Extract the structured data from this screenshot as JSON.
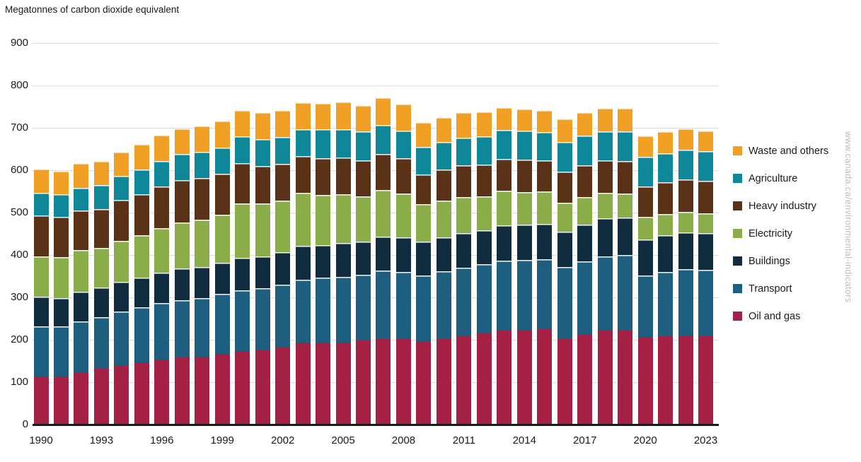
{
  "chart_data": {
    "type": "bar",
    "stacked": true,
    "title": "Megatonnes of carbon dioxide equivalent",
    "watermark": "www.canada.ca/environmental-indicators",
    "xlabel": "",
    "ylabel": "Megatonnes of carbon dioxide equivalent",
    "ylim": [
      0,
      900
    ],
    "ytick_step": 100,
    "grid": true,
    "legend_position": "right",
    "years": [
      1990,
      1991,
      1992,
      1993,
      1994,
      1995,
      1996,
      1997,
      1998,
      1999,
      2000,
      2001,
      2002,
      2003,
      2004,
      2005,
      2006,
      2007,
      2008,
      2009,
      2010,
      2011,
      2012,
      2013,
      2014,
      2015,
      2016,
      2017,
      2018,
      2019,
      2020,
      2021,
      2022,
      2023
    ],
    "x_tick_years": [
      1990,
      1993,
      1996,
      1999,
      2002,
      2005,
      2008,
      2011,
      2014,
      2017,
      2020,
      2023
    ],
    "series": [
      {
        "name": "Oil and gas",
        "color": "#A42045",
        "values": [
          113,
          114,
          123,
          131,
          139,
          146,
          153,
          158,
          160,
          166,
          173,
          177,
          183,
          191,
          192,
          194,
          199,
          204,
          201,
          196,
          202,
          209,
          215,
          221,
          224,
          225,
          203,
          212,
          222,
          224,
          206,
          210,
          210,
          208
        ]
      },
      {
        "name": "Transport",
        "color": "#1E5F80",
        "values": [
          119,
          117,
          121,
          123,
          127,
          130,
          133,
          136,
          138,
          142,
          144,
          144,
          147,
          151,
          154,
          155,
          155,
          160,
          159,
          156,
          160,
          161,
          163,
          166,
          164,
          165,
          168,
          173,
          175,
          176,
          145,
          150,
          156,
          157
        ]
      },
      {
        "name": "Buildings",
        "color": "#102C3E",
        "values": [
          70,
          68,
          69,
          69,
          70,
          71,
          73,
          74,
          73,
          74,
          77,
          76,
          76,
          79,
          78,
          80,
          77,
          80,
          82,
          79,
          79,
          81,
          80,
          83,
          84,
          84,
          84,
          87,
          90,
          88,
          85,
          86,
          87,
          87
        ]
      },
      {
        "name": "Electricity",
        "color": "#8AAD4A",
        "values": [
          95,
          96,
          98,
          94,
          97,
          99,
          105,
          108,
          113,
          113,
          127,
          125,
          122,
          126,
          117,
          114,
          107,
          110,
          103,
          89,
          87,
          85,
          81,
          82,
          77,
          76,
          69,
          65,
          59,
          57,
          54,
          51,
          48,
          46
        ]
      },
      {
        "name": "Heavy industry",
        "color": "#5A3217",
        "values": [
          97,
          95,
          94,
          92,
          97,
          98,
          98,
          101,
          98,
          97,
          96,
          88,
          87,
          86,
          88,
          87,
          86,
          85,
          83,
          70,
          74,
          76,
          75,
          75,
          76,
          73,
          73,
          75,
          77,
          77,
          72,
          74,
          77,
          77
        ]
      },
      {
        "name": "Agriculture",
        "color": "#0E8798",
        "values": [
          52,
          53,
          54,
          56,
          56,
          57,
          60,
          61,
          61,
          62,
          63,
          63,
          64,
          64,
          67,
          67,
          67,
          68,
          66,
          65,
          64,
          65,
          66,
          68,
          68,
          67,
          69,
          69,
          69,
          70,
          70,
          69,
          70,
          70
        ]
      },
      {
        "name": "Waste and others",
        "color": "#F0A125",
        "values": [
          58,
          55,
          57,
          56,
          58,
          60,
          62,
          61,
          62,
          63,
          61,
          63,
          62,
          63,
          63,
          64,
          63,
          64,
          63,
          58,
          59,
          59,
          58,
          54,
          52,
          51,
          56,
          55,
          54,
          54,
          49,
          51,
          50,
          49
        ]
      }
    ],
    "legend_order_top_to_bottom": [
      "Waste and others",
      "Agriculture",
      "Heavy industry",
      "Electricity",
      "Buildings",
      "Transport",
      "Oil and gas"
    ]
  }
}
